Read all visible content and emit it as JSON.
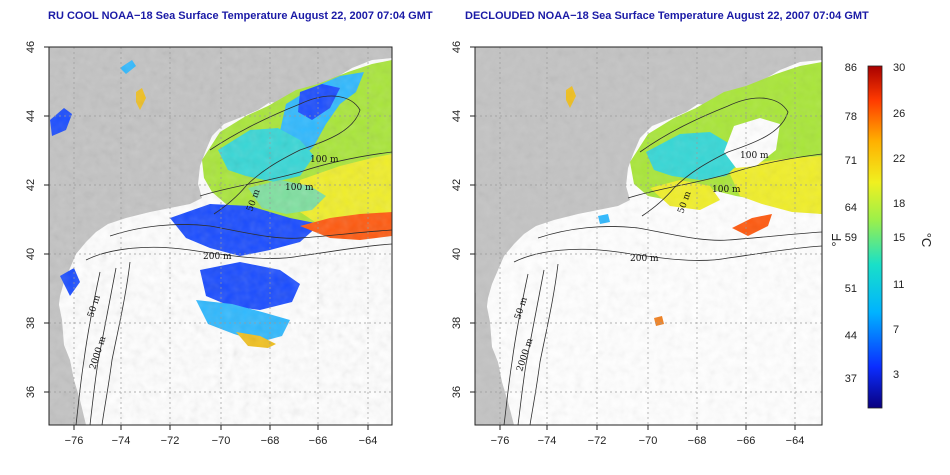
{
  "left_map": {
    "title": "RU COOL NOAA−18 Sea Surface Temperature August 22, 2007 07:04 GMT",
    "x_ticks": [
      "−76",
      "−74",
      "−72",
      "−70",
      "−68",
      "−66",
      "−64"
    ],
    "y_ticks": [
      "46",
      "44",
      "42",
      "40",
      "38",
      "36"
    ],
    "contour_labels": [
      "100 m",
      "100 m",
      "50 m",
      "200 m",
      "50 m",
      "2000 m"
    ]
  },
  "right_map": {
    "title": "DECLOUDED NOAA−18 Sea Surface Temperature August 22, 2007 07:04 GMT",
    "x_ticks": [
      "−76",
      "−74",
      "−72",
      "−70",
      "−68",
      "−66",
      "−64"
    ],
    "y_ticks": [
      "46",
      "44",
      "42",
      "40",
      "38",
      "36"
    ],
    "contour_labels": [
      "100 m",
      "100 m",
      "50 m",
      "200 m",
      "50 m",
      "2000 m"
    ]
  },
  "colorbar": {
    "f_unit": "°F",
    "c_unit": "°C",
    "f_ticks": [
      "86",
      "78",
      "71",
      "64",
      "59",
      "51",
      "44",
      "37"
    ],
    "c_ticks": [
      "30",
      "26",
      "22",
      "18",
      "15",
      "11",
      "7",
      "3"
    ],
    "gradient": [
      "#0a007f",
      "#0b2dff",
      "#00b3ff",
      "#19e0c8",
      "#9cf04a",
      "#f0f020",
      "#ffb000",
      "#ff3a00",
      "#a80000"
    ]
  },
  "colors": {
    "land": "#c3c3c3",
    "contour": "#2e2e2e",
    "grid": "#9a9a9a",
    "title": "#1a1aa6"
  }
}
